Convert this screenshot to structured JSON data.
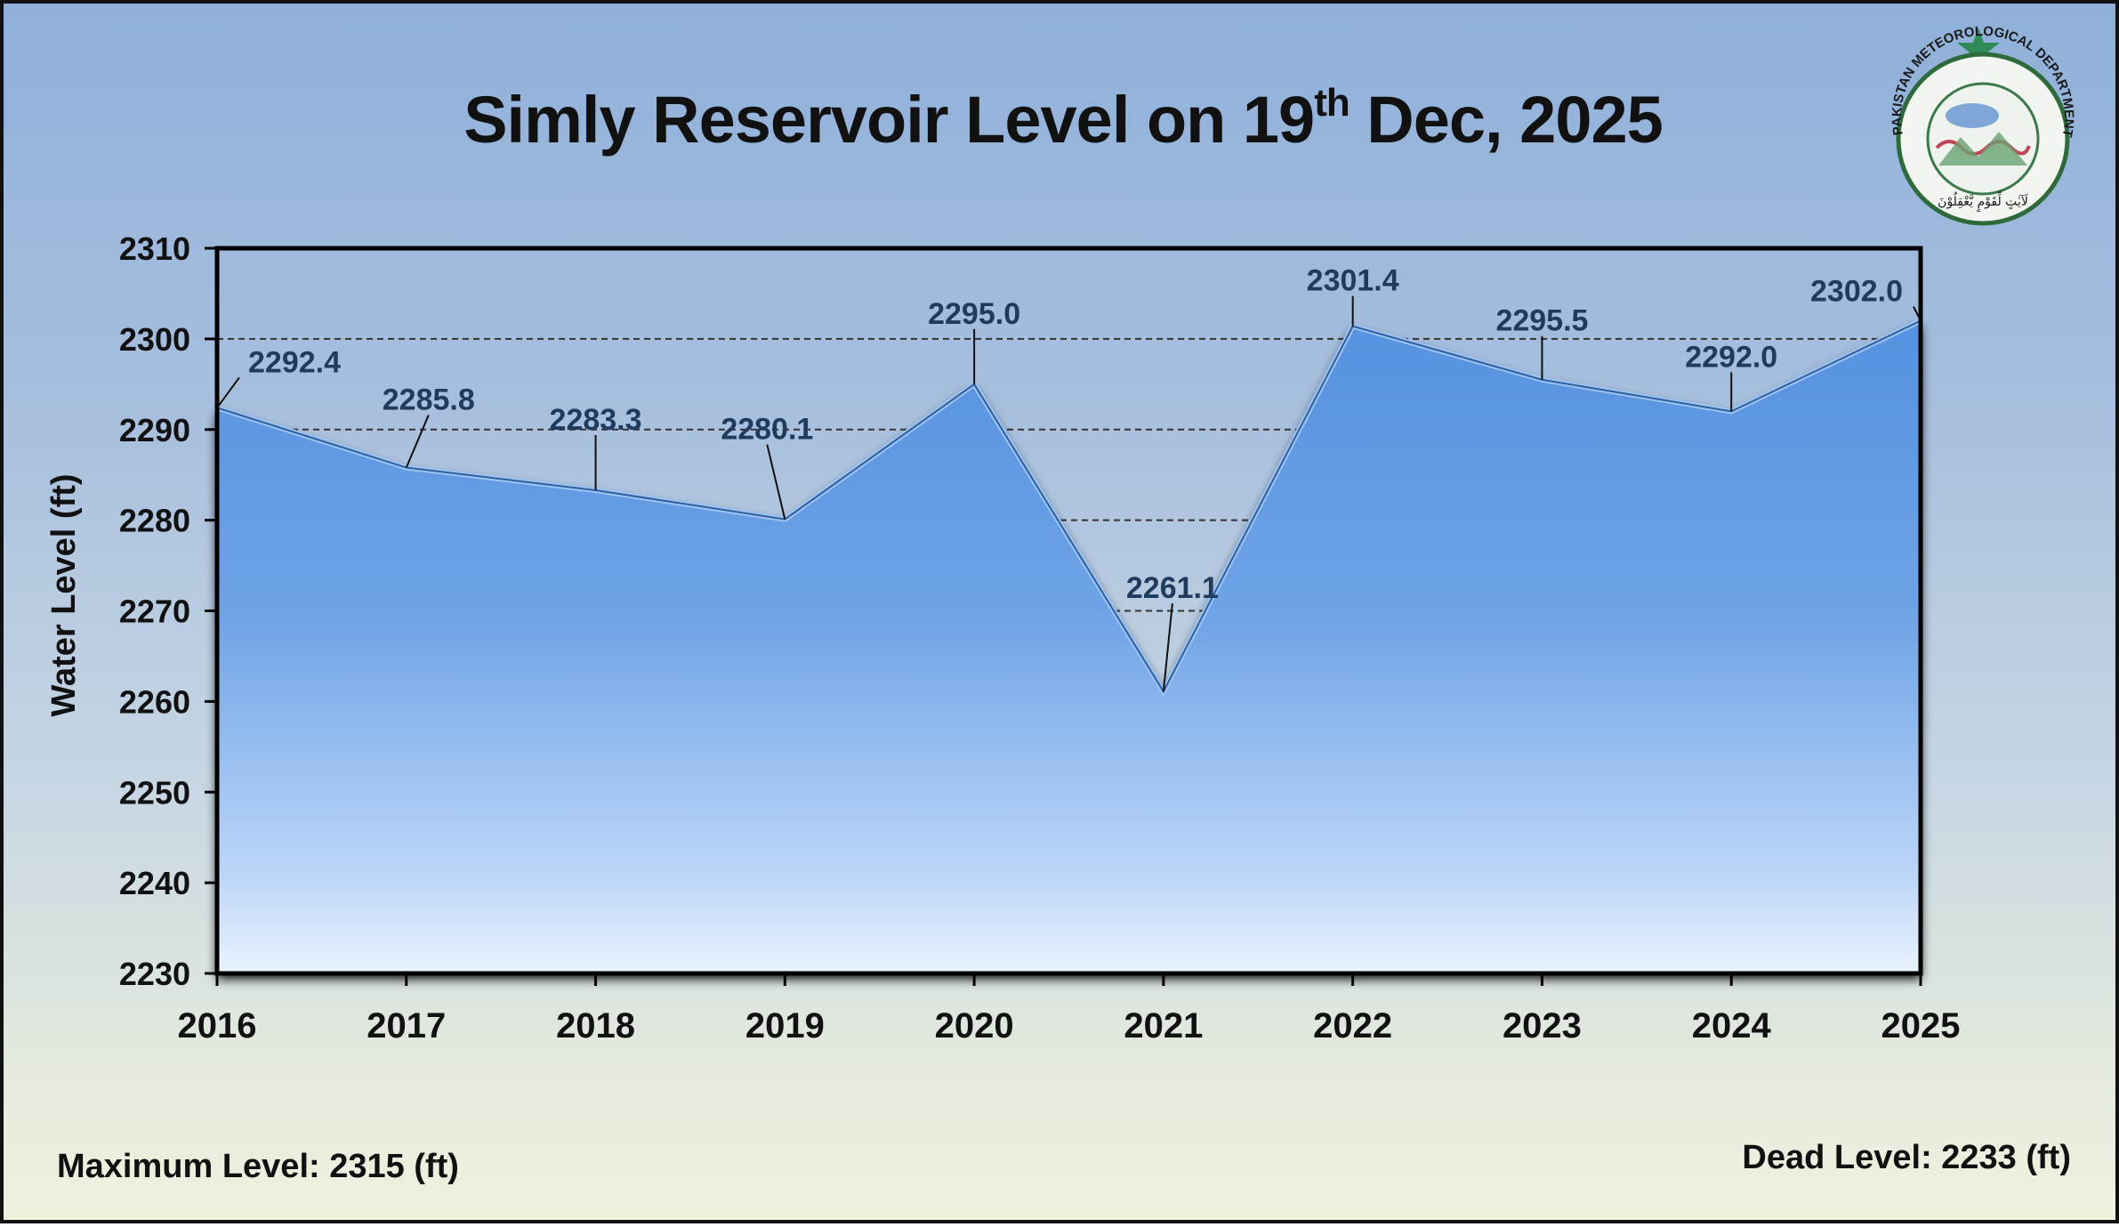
{
  "title": {
    "main": "Simly Reservoir Level on 19",
    "superscript": "th",
    "suffix": " Dec, 2025"
  },
  "footer": {
    "max_level": "Maximum Level: 2315 (ft)",
    "dead_level": "Dead Level: 2233 (ft)"
  },
  "logo": {
    "ring_text": "PAKISTAN METEOROLOGICAL DEPARTMENT",
    "motto": "لَآيٰتٍ لِّقَوْمٍ يَّعْقِلُوْنَ"
  },
  "colors": {
    "area_top": "#5592e0",
    "area_bottom": "#d3e5fb",
    "label": "#1f3b5e",
    "axis": "#000000"
  },
  "chart_data": {
    "type": "area",
    "x": [
      "2016",
      "2017",
      "2018",
      "2019",
      "2020",
      "2021",
      "2022",
      "2023",
      "2024",
      "2025"
    ],
    "series": [
      {
        "values": [
          2292.4,
          2285.8,
          2283.3,
          2280.1,
          2295.0,
          2261.1,
          2301.4,
          2295.5,
          2292.0,
          2302.0
        ]
      }
    ],
    "data_labels": [
      "2292.4",
      "2285.8",
      "2283.3",
      "2280.1",
      "2295.0",
      "2261.1",
      "2301.4",
      "2295.5",
      "2292.0",
      "2302.0"
    ],
    "ylabel": "Water Level (ft)",
    "xlabel": "",
    "ylim": [
      2230,
      2310
    ],
    "yticks": [
      2230,
      2240,
      2250,
      2260,
      2270,
      2280,
      2290,
      2300,
      2310
    ],
    "grid": "dashed horizontal",
    "legend": "none"
  }
}
